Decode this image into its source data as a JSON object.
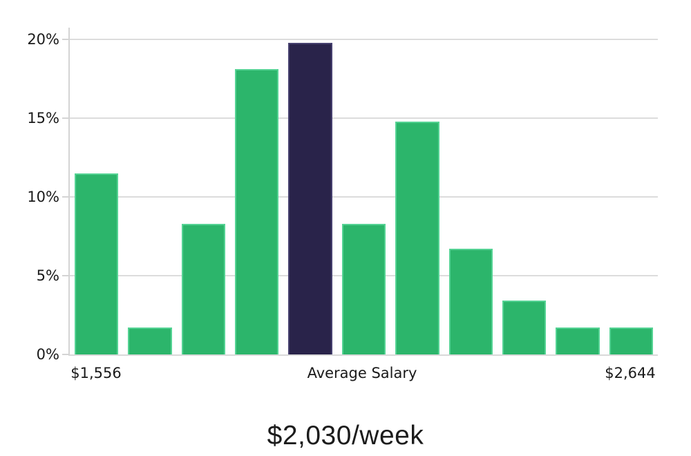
{
  "chart_data": {
    "type": "bar",
    "title": "",
    "xlabel": "",
    "ylabel": "",
    "ylim": [
      0,
      20
    ],
    "grid": true,
    "legend": false,
    "y_ticks": [
      {
        "value": 0,
        "label": "0%"
      },
      {
        "value": 5,
        "label": "5%"
      },
      {
        "value": 10,
        "label": "10%"
      },
      {
        "value": 15,
        "label": "15%"
      },
      {
        "value": 20,
        "label": "20%"
      }
    ],
    "values": [
      11.5,
      1.7,
      8.3,
      18.1,
      19.8,
      8.3,
      14.8,
      6.7,
      3.4,
      1.7,
      1.7
    ],
    "highlight_index": 4,
    "x_axis_labels": {
      "min": {
        "text": "$1,556",
        "anchor": "first-bar-center"
      },
      "average": {
        "text": "Average Salary",
        "anchor": "plot-center"
      },
      "max": {
        "text": "$2,644",
        "anchor": "last-bar-center"
      }
    }
  },
  "caption": {
    "average_salary": "$2,030/week"
  },
  "colors": {
    "bar_fill": "#2cb56b",
    "bar_border": "#55d394",
    "highlight_fill": "#29234a",
    "highlight_border": "#474170",
    "grid": "#dcdcdc",
    "text": "#1a1a1a"
  }
}
